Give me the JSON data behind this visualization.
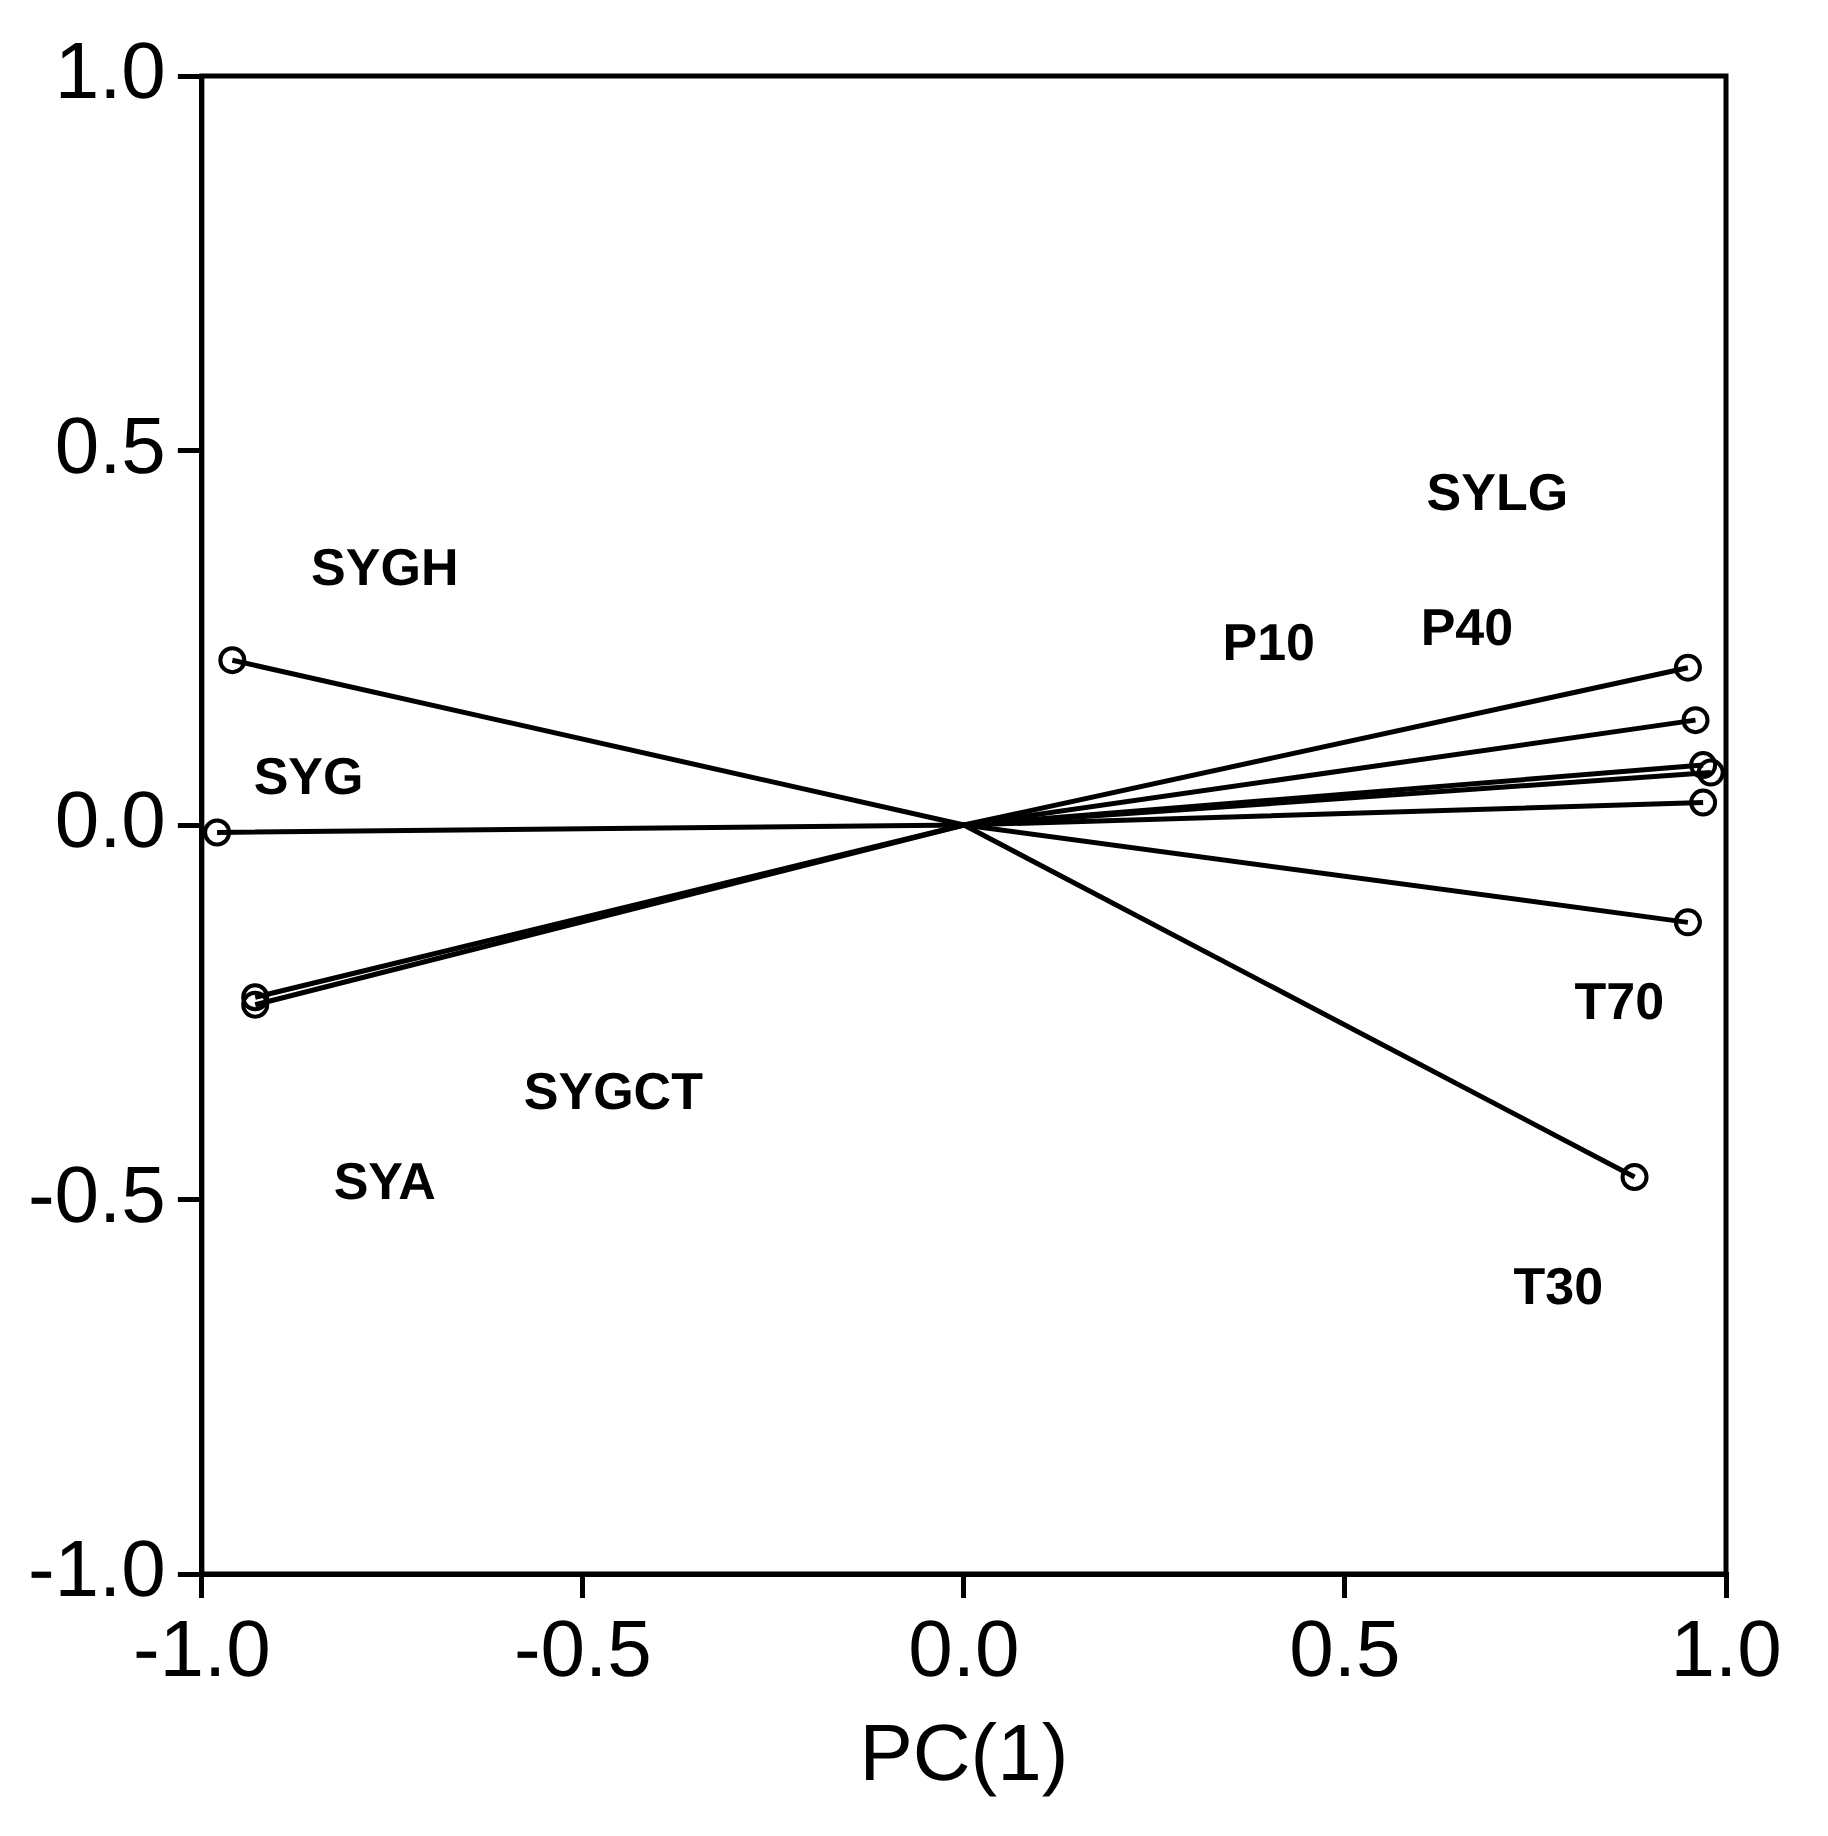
{
  "chart_data": {
    "type": "line",
    "xlabel": "PC(1)",
    "xlim": [
      -1,
      1
    ],
    "ylim": [
      -1,
      1
    ],
    "xticks": [
      {
        "value": -1,
        "label": "-1.0"
      },
      {
        "value": -0.5,
        "label": "-0.5"
      },
      {
        "value": 0,
        "label": "0.0"
      },
      {
        "value": 0.5,
        "label": "0.5"
      },
      {
        "value": 1,
        "label": "1.0"
      }
    ],
    "yticks": [
      {
        "value": -1,
        "label": "-1.0"
      },
      {
        "value": -0.5,
        "label": "-0.5"
      },
      {
        "value": 0,
        "label": "0.0"
      },
      {
        "value": 0.5,
        "label": "0.5"
      },
      {
        "value": 1,
        "label": "1.0"
      }
    ],
    "grid": false,
    "legend": false,
    "marker": "circle",
    "line_style": "solid",
    "series": [
      {
        "color": "#000000",
        "x": [
          -0.93,
          0,
          0.95
        ],
        "values": [
          -0.23,
          0,
          0.21
        ]
      },
      {
        "color": "#000000",
        "x": [
          -0.93,
          0,
          0.96
        ],
        "values": [
          -0.24,
          0,
          0.14
        ]
      },
      {
        "color": "#000000",
        "x": [
          -0.98,
          0,
          0.97
        ],
        "values": [
          -0.01,
          0,
          0.03
        ]
      },
      {
        "color": "#000000",
        "x": [
          -0.96,
          0,
          0.88
        ],
        "values": [
          0.22,
          0,
          -0.47
        ]
      },
      {
        "color": "#000000",
        "x": [
          0,
          0.97
        ],
        "values": [
          0,
          0.08
        ]
      },
      {
        "color": "#000000",
        "x": [
          0,
          0.98
        ],
        "values": [
          0,
          0.07
        ]
      },
      {
        "color": "#000000",
        "x": [
          0,
          0.95
        ],
        "values": [
          0,
          -0.13
        ]
      }
    ],
    "annotations": [
      "SYGH",
      "SYG",
      "SYGCT",
      "SYA",
      "SYLG",
      "P10",
      "P40",
      "T70",
      "T30"
    ]
  }
}
